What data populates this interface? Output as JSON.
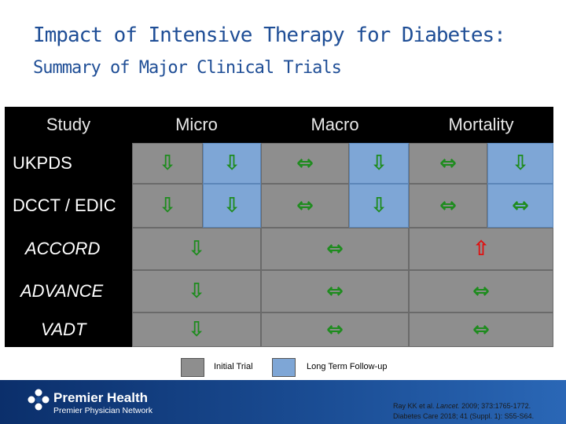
{
  "title": {
    "line1": "Impact of Intensive Therapy for Diabetes:",
    "line2": "Summary of Major Clinical Trials"
  },
  "table": {
    "headers": {
      "study": "Study",
      "micro": "Micro",
      "macro": "Macro",
      "mortality": "Mortality"
    },
    "rows": [
      {
        "study": "UKPDS",
        "micro_initial": "decrease",
        "micro_followup": "decrease",
        "macro_initial": "no-change",
        "macro_followup": "decrease",
        "mortality_initial": "no-change",
        "mortality_followup": "decrease"
      },
      {
        "study": "DCCT / EDIC",
        "micro_initial": "decrease",
        "micro_followup": "decrease",
        "macro_initial": "no-change",
        "macro_followup": "decrease",
        "mortality_initial": "no-change",
        "mortality_followup": "no-change"
      },
      {
        "study": "ACCORD",
        "micro": "decrease",
        "macro": "no-change",
        "mortality": "increase"
      },
      {
        "study": "ADVANCE",
        "micro": "decrease",
        "macro": "no-change",
        "mortality": "no-change"
      },
      {
        "study": "VADT",
        "micro": "decrease",
        "macro": "no-change",
        "mortality": "no-change"
      }
    ],
    "colors": {
      "initial": "#8e8e8e",
      "followup": "#7ea6d6",
      "decrease": "#1e8c1e",
      "increase": "#e01010"
    }
  },
  "legend": {
    "initial": "Initial Trial",
    "followup": "Long Term Follow-up"
  },
  "footer": {
    "org_name": "Premier Health",
    "org_sub": "Premier Physician Network",
    "ref_line1_a": "Ray KK et al.",
    "ref_line1_journal": "Lancet.",
    "ref_line1_b": "2009; 373:1765-1772.",
    "ref_line2": "Diabetes Care 2018; 41 (Suppl. 1): S55-S64."
  }
}
